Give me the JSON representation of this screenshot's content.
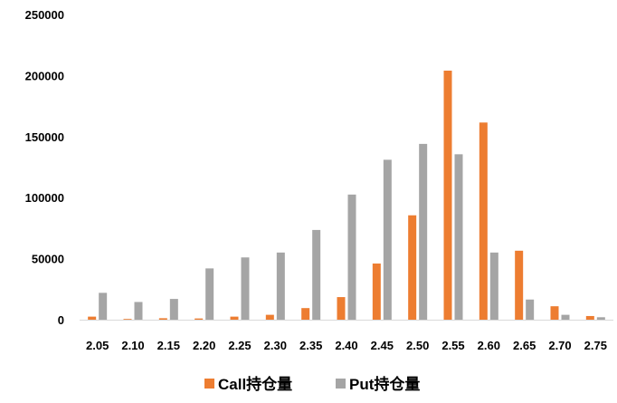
{
  "chart_data": {
    "type": "bar",
    "title": "",
    "xlabel": "",
    "ylabel": "",
    "categories": [
      "2.05",
      "2.10",
      "2.15",
      "2.20",
      "2.25",
      "2.30",
      "2.35",
      "2.40",
      "2.45",
      "2.50",
      "2.55",
      "2.60",
      "2.65",
      "2.70",
      "2.75"
    ],
    "series": [
      {
        "name": "Call持仓量",
        "color": "#ED7D31",
        "values": [
          2500,
          600,
          1200,
          1000,
          2500,
          4000,
          9500,
          18500,
          46000,
          85500,
          204000,
          161500,
          56500,
          11000,
          3000
        ]
      },
      {
        "name": "Put持仓量",
        "color": "#A5A5A5",
        "values": [
          22000,
          14500,
          17000,
          42000,
          51000,
          55000,
          73500,
          102500,
          131000,
          144000,
          135500,
          55000,
          16500,
          4000,
          2000
        ]
      }
    ],
    "ylim": [
      0,
      250000
    ],
    "yticks": [
      0,
      50000,
      100000,
      150000,
      200000,
      250000
    ],
    "ytick_labels": [
      "0",
      "50000",
      "100000",
      "150000",
      "200000",
      "250000"
    ],
    "grid": false,
    "legend_position": "bottom"
  }
}
